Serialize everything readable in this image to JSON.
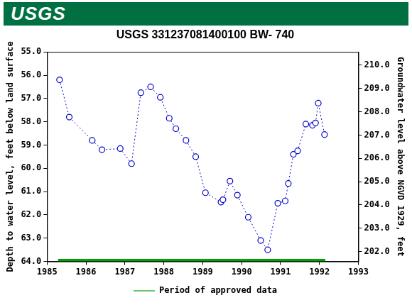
{
  "header": {
    "text": "USGS"
  },
  "chart_data": {
    "type": "line",
    "title": "USGS 331237081400100 BW- 740",
    "y_label": "Depth to water level, feet below land surface",
    "y2_label": "Groundwater level above NGVD 1929, feet",
    "x": [
      1985.32,
      1985.57,
      1986.16,
      1986.41,
      1986.88,
      1987.17,
      1987.41,
      1987.66,
      1987.91,
      1988.14,
      1988.31,
      1988.57,
      1988.82,
      1989.07,
      1989.47,
      1989.52,
      1989.7,
      1989.89,
      1990.17,
      1990.49,
      1990.67,
      1990.93,
      1991.12,
      1991.2,
      1991.33,
      1991.44,
      1991.65,
      1991.82,
      1991.9,
      1991.97,
      1992.13
    ],
    "series": [
      {
        "color": "#0000cc",
        "marker": "circle",
        "line_style": "dotted",
        "values": [
          56.2,
          57.8,
          58.8,
          59.2,
          59.15,
          59.8,
          56.75,
          56.5,
          56.95,
          57.85,
          58.3,
          58.8,
          59.5,
          61.05,
          61.45,
          61.35,
          60.55,
          61.15,
          62.1,
          63.1,
          63.5,
          61.5,
          61.4,
          60.65,
          59.4,
          59.25,
          58.1,
          58.15,
          58.05,
          57.2,
          58.55
        ]
      },
      {
        "name": "Period of approved data",
        "color": "#00a000",
        "marker": "none",
        "line_style": "solid",
        "x": [
          1985.28,
          1992.15
        ],
        "values": [
          63.95,
          63.95
        ]
      }
    ],
    "xlim": [
      1985,
      1993
    ],
    "xticks": [
      1985,
      1986,
      1987,
      1988,
      1989,
      1990,
      1991,
      1992,
      1993
    ],
    "ylim": [
      64,
      55
    ],
    "yticks": [
      {
        "value": 55,
        "label": "55.0"
      },
      {
        "value": 56,
        "label": "56.0"
      },
      {
        "value": 57,
        "label": "57.0"
      },
      {
        "value": 58,
        "label": "58.0"
      },
      {
        "value": 59,
        "label": "59.0"
      },
      {
        "value": 60,
        "label": "60.0"
      },
      {
        "value": 61,
        "label": "61.0"
      },
      {
        "value": 62,
        "label": "62.0"
      },
      {
        "value": 63,
        "label": "63.0"
      },
      {
        "value": 64,
        "label": "64.0"
      }
    ],
    "y2lim": [
      201.57,
      210.57
    ],
    "y2ticks": [
      {
        "value": 202,
        "label": "202.0"
      },
      {
        "value": 203,
        "label": "203.0"
      },
      {
        "value": 204,
        "label": "204.0"
      },
      {
        "value": 205,
        "label": "205.0"
      },
      {
        "value": 206,
        "label": "206.0"
      },
      {
        "value": 207,
        "label": "207.0"
      },
      {
        "value": 208,
        "label": "208.0"
      },
      {
        "value": 209,
        "label": "209.0"
      },
      {
        "value": 210,
        "label": "210.0"
      }
    ],
    "grid": false,
    "legend": "bottom"
  }
}
